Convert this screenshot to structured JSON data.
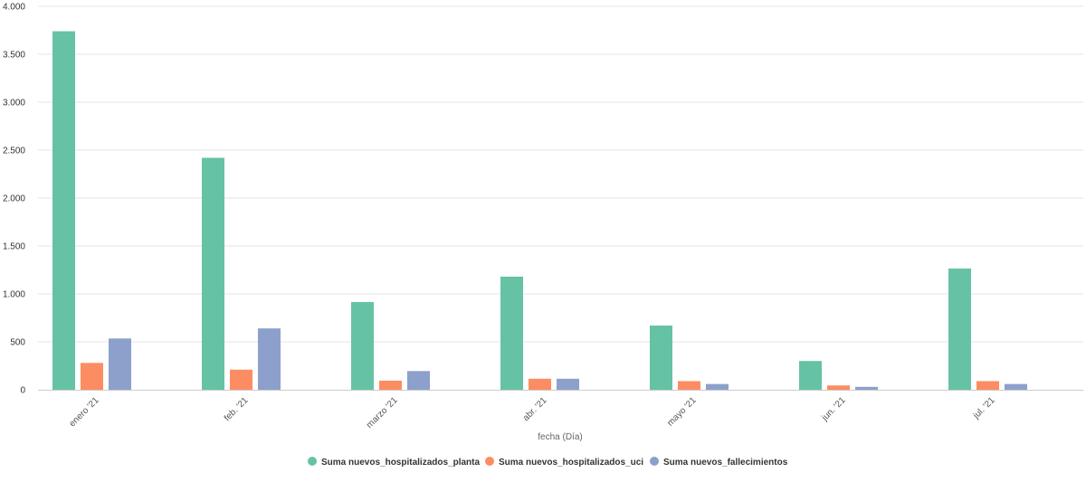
{
  "chart_data": {
    "type": "bar",
    "title": "",
    "xlabel": "fecha (Día)",
    "ylabel": "",
    "ylim": [
      0,
      4000
    ],
    "yticks": [
      0,
      500,
      1000,
      1500,
      2000,
      2500,
      3000,
      3500,
      4000
    ],
    "ytick_labels": [
      "0",
      "500",
      "1.000",
      "1.500",
      "2.000",
      "2.500",
      "3.000",
      "3.500",
      "4.000"
    ],
    "categories": [
      "enero '21",
      "feb. '21",
      "marzo '21",
      "abr. '21",
      "mayo '21",
      "jun. '21",
      "jul. '21"
    ],
    "grid": "horizontal",
    "legend_position": "bottom",
    "series": [
      {
        "name": "Suma nuevos_hospitalizados_planta",
        "color": "#66c2a5",
        "values": [
          3740,
          2420,
          915,
          1180,
          670,
          300,
          1265
        ]
      },
      {
        "name": "Suma nuevos_hospitalizados_uci",
        "color": "#fc8d62",
        "values": [
          280,
          210,
          95,
          115,
          90,
          45,
          90
        ]
      },
      {
        "name": "Suma nuevos_fallecimientos",
        "color": "#8da0cb",
        "values": [
          535,
          640,
          195,
          115,
          60,
          30,
          60
        ]
      }
    ]
  }
}
